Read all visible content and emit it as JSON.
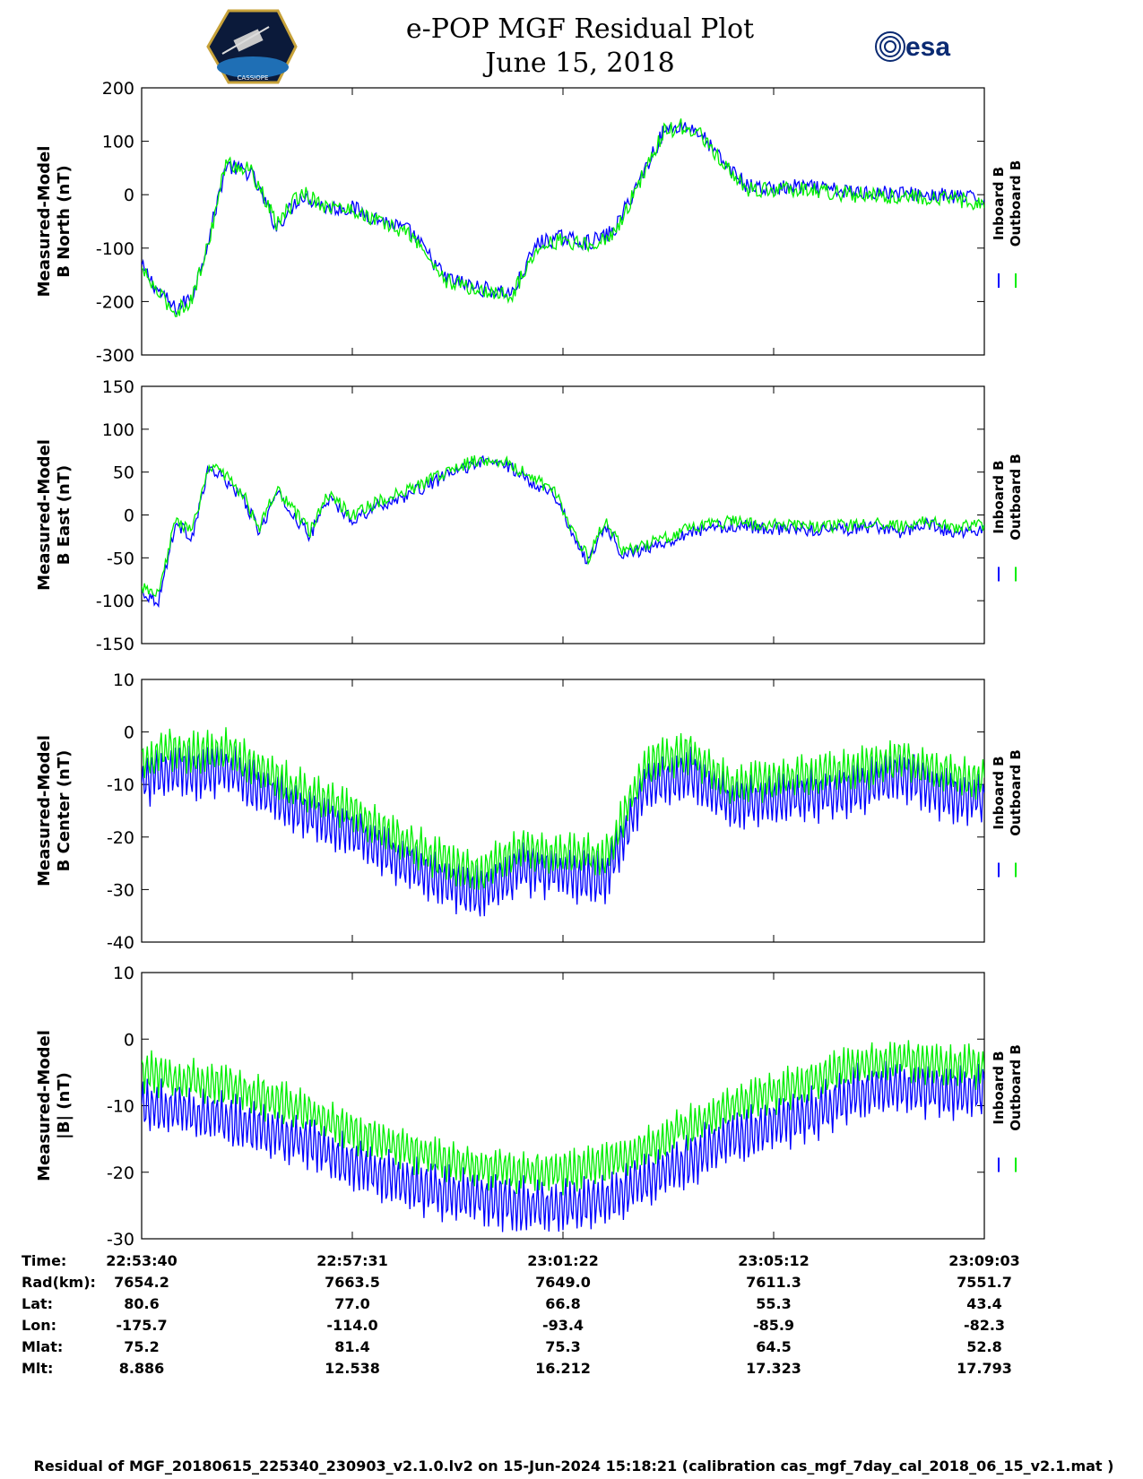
{
  "header": {
    "title_line1": "e-POP MGF Residual Plot",
    "title_line2": "June 15, 2018",
    "logo_left_text": "CASSIOPE",
    "logo_right_text": "esa"
  },
  "colors": {
    "inboard": "#0000ff",
    "outboard": "#00ee00"
  },
  "legend": {
    "inboard": "Inboard B",
    "outboard": "Outboard B"
  },
  "chart_data": [
    {
      "type": "line",
      "ylabel_line1": "Measured-Model",
      "ylabel_line2": "B North (nT)",
      "ylim": [
        -300,
        200
      ],
      "yticks": [
        -300,
        -200,
        -100,
        0,
        100,
        200
      ],
      "x": [
        0,
        2,
        4,
        6,
        8,
        10,
        13,
        16,
        19,
        22,
        25,
        28,
        32,
        36,
        40,
        44,
        47,
        50,
        53,
        56,
        59,
        62,
        64,
        66,
        69,
        72,
        75,
        78,
        81,
        84,
        87,
        90,
        93,
        96,
        100
      ],
      "series": [
        {
          "name": "Inboard B",
          "values": [
            -135,
            -180,
            -215,
            -190,
            -80,
            55,
            40,
            -60,
            0,
            -25,
            -25,
            -45,
            -70,
            -155,
            -175,
            -185,
            -90,
            -80,
            -90,
            -70,
            25,
            120,
            130,
            120,
            60,
            15,
            10,
            15,
            10,
            5,
            5,
            2,
            0,
            -3,
            -10
          ]
        },
        {
          "name": "Outboard B",
          "values": [
            -140,
            -185,
            -220,
            -195,
            -85,
            60,
            45,
            -55,
            5,
            -22,
            -28,
            -50,
            -75,
            -160,
            -180,
            -188,
            -95,
            -85,
            -95,
            -75,
            20,
            118,
            128,
            118,
            55,
            10,
            8,
            12,
            6,
            0,
            0,
            -3,
            -5,
            -8,
            -15
          ]
        }
      ]
    },
    {
      "type": "line",
      "ylabel_line1": "Measured-Model",
      "ylabel_line2": "B East (nT)",
      "ylim": [
        -150,
        150
      ],
      "yticks": [
        -150,
        -100,
        -50,
        0,
        50,
        100,
        150
      ],
      "x": [
        0,
        2,
        4,
        6,
        8,
        10,
        12,
        14,
        16,
        18,
        20,
        22,
        25,
        28,
        32,
        36,
        40,
        43,
        46,
        49,
        51,
        53,
        55,
        57,
        60,
        65,
        70,
        75,
        80,
        85,
        88,
        90,
        93,
        96,
        100
      ],
      "series": [
        {
          "name": "Inboard B",
          "values": [
            -90,
            -100,
            -10,
            -25,
            55,
            40,
            20,
            -20,
            25,
            0,
            -25,
            20,
            -5,
            10,
            25,
            45,
            62,
            60,
            40,
            25,
            -20,
            -55,
            -10,
            -45,
            -40,
            -20,
            -12,
            -16,
            -17,
            -16,
            -15,
            -20,
            -10,
            -20,
            -18
          ]
        },
        {
          "name": "Outboard B",
          "values": [
            -85,
            -95,
            -5,
            -20,
            60,
            45,
            25,
            -15,
            30,
            5,
            -20,
            25,
            0,
            15,
            30,
            50,
            65,
            63,
            45,
            28,
            -15,
            -50,
            -5,
            -40,
            -35,
            -15,
            -8,
            -12,
            -13,
            -12,
            -10,
            -14,
            -6,
            -14,
            -12
          ]
        }
      ]
    },
    {
      "type": "line",
      "ylabel_line1": "Measured-Model",
      "ylabel_line2": "B Center (nT)",
      "ylim": [
        -40,
        10
      ],
      "yticks": [
        -40,
        -30,
        -20,
        -10,
        0,
        10
      ],
      "x": [
        0,
        3,
        6,
        10,
        15,
        20,
        25,
        30,
        35,
        40,
        45,
        50,
        55,
        60,
        65,
        70,
        75,
        80,
        85,
        90,
        95,
        100
      ],
      "series": [
        {
          "name": "Inboard B",
          "values": [
            -10,
            -7,
            -8,
            -7,
            -12,
            -16,
            -19,
            -24,
            -28,
            -31,
            -26,
            -27,
            -28,
            -10,
            -8,
            -14,
            -13,
            -12,
            -11,
            -8,
            -12,
            -13
          ]
        },
        {
          "name": "Outboard B",
          "values": [
            -6,
            -3,
            -4,
            -3,
            -8,
            -12,
            -15,
            -20,
            -24,
            -27,
            -22,
            -23,
            -24,
            -6,
            -4,
            -10,
            -9,
            -8,
            -7,
            -5,
            -8,
            -9
          ]
        }
      ]
    },
    {
      "type": "line",
      "ylabel_line1": "Measured-Model",
      "ylabel_line2": "|B| (nT)",
      "ylim": [
        -30,
        10
      ],
      "yticks": [
        -30,
        -20,
        -10,
        0,
        10
      ],
      "x": [
        0,
        5,
        10,
        15,
        20,
        25,
        30,
        35,
        40,
        45,
        50,
        55,
        60,
        65,
        70,
        75,
        80,
        85,
        90,
        95,
        100
      ],
      "series": [
        {
          "name": "Inboard B",
          "values": [
            -10,
            -11,
            -12,
            -14,
            -16,
            -19,
            -21,
            -23,
            -24,
            -25,
            -25,
            -24,
            -21,
            -18,
            -15,
            -13,
            -11,
            -8,
            -7,
            -8,
            -8
          ]
        },
        {
          "name": "Outboard B",
          "values": [
            -5,
            -6,
            -7,
            -9,
            -11,
            -14,
            -16,
            -18,
            -19,
            -20,
            -20,
            -19,
            -16,
            -13,
            -10,
            -8,
            -6,
            -4,
            -3,
            -4,
            -4
          ]
        }
      ]
    }
  ],
  "info_table": {
    "row_labels": [
      "Time:",
      "Rad(km):",
      "Lat:",
      "Lon:",
      "Mlat:",
      "Mlt:"
    ],
    "columns": [
      [
        "22:53:40",
        "7654.2",
        "80.6",
        "-175.7",
        "75.2",
        "8.886"
      ],
      [
        "22:57:31",
        "7663.5",
        "77.0",
        "-114.0",
        "81.4",
        "12.538"
      ],
      [
        "23:01:22",
        "7649.0",
        "66.8",
        "-93.4",
        "75.3",
        "16.212"
      ],
      [
        "23:05:12",
        "7611.3",
        "55.3",
        "-85.9",
        "64.5",
        "17.323"
      ],
      [
        "23:09:03",
        "7551.7",
        "43.4",
        "-82.3",
        "52.8",
        "17.793"
      ]
    ]
  },
  "footer": "Residual of MGF_20180615_225340_230903_v2.1.0.lv2 on 15-Jun-2024 15:18:21 (calibration cas_mgf_7day_cal_2018_06_15_v2.1.mat )"
}
